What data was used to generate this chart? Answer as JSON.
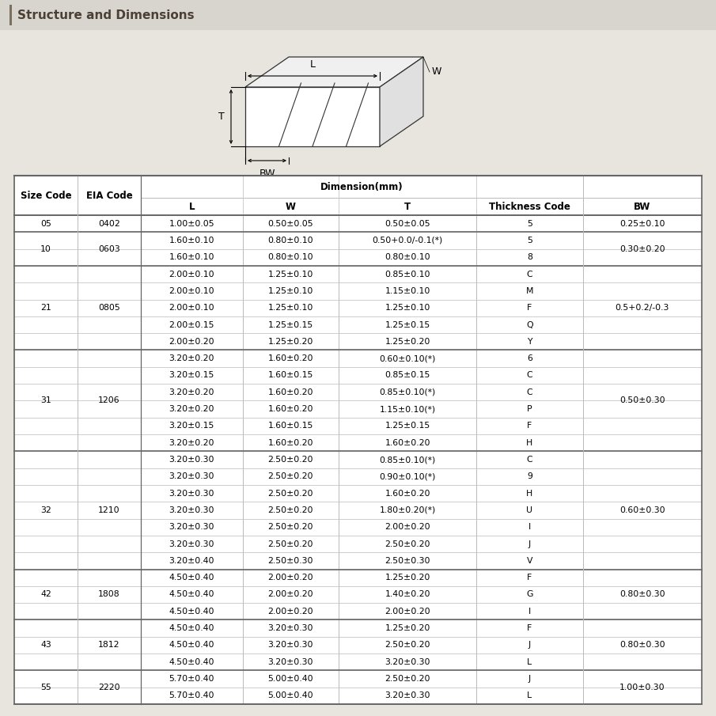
{
  "title": "Structure and Dimensions",
  "rows": [
    {
      "size": "05",
      "eia": "0402",
      "L": "1.00±0.05",
      "W": "0.50±0.05",
      "T": "0.50±0.05",
      "TC": "5",
      "BW": "0.25±0.10",
      "size_span": 1
    },
    {
      "size": "10",
      "eia": "0603",
      "L": "1.60±0.10",
      "W": "0.80±0.10",
      "T": "0.50+0.0/-0.1(*)",
      "TC": "5",
      "BW": "0.30±0.20",
      "size_span": 2
    },
    {
      "size": "",
      "eia": "",
      "L": "1.60±0.10",
      "W": "0.80±0.10",
      "T": "0.80±0.10",
      "TC": "8",
      "BW": ""
    },
    {
      "size": "21",
      "eia": "0805",
      "L": "2.00±0.10",
      "W": "1.25±0.10",
      "T": "0.85±0.10",
      "TC": "C",
      "BW": "0.5+0.2/-0.3",
      "size_span": 5
    },
    {
      "size": "",
      "eia": "",
      "L": "2.00±0.10",
      "W": "1.25±0.10",
      "T": "1.15±0.10",
      "TC": "M",
      "BW": ""
    },
    {
      "size": "",
      "eia": "",
      "L": "2.00±0.10",
      "W": "1.25±0.10",
      "T": "1.25±0.10",
      "TC": "F",
      "BW": ""
    },
    {
      "size": "",
      "eia": "",
      "L": "2.00±0.15",
      "W": "1.25±0.15",
      "T": "1.25±0.15",
      "TC": "Q",
      "BW": ""
    },
    {
      "size": "",
      "eia": "",
      "L": "2.00±0.20",
      "W": "1.25±0.20",
      "T": "1.25±0.20",
      "TC": "Y",
      "BW": ""
    },
    {
      "size": "31",
      "eia": "1206",
      "L": "3.20±0.20",
      "W": "1.60±0.20",
      "T": "0.60±0.10(*)",
      "TC": "6",
      "BW": "0.50±0.30",
      "size_span": 6
    },
    {
      "size": "",
      "eia": "",
      "L": "3.20±0.15",
      "W": "1.60±0.15",
      "T": "0.85±0.15",
      "TC": "C",
      "BW": ""
    },
    {
      "size": "",
      "eia": "",
      "L": "3.20±0.20",
      "W": "1.60±0.20",
      "T": "0.85±0.10(*)",
      "TC": "C",
      "BW": ""
    },
    {
      "size": "",
      "eia": "",
      "L": "3.20±0.20",
      "W": "1.60±0.20",
      "T": "1.15±0.10(*)",
      "TC": "P",
      "BW": ""
    },
    {
      "size": "",
      "eia": "",
      "L": "3.20±0.15",
      "W": "1.60±0.15",
      "T": "1.25±0.15",
      "TC": "F",
      "BW": ""
    },
    {
      "size": "",
      "eia": "",
      "L": "3.20±0.20",
      "W": "1.60±0.20",
      "T": "1.60±0.20",
      "TC": "H",
      "BW": ""
    },
    {
      "size": "32",
      "eia": "1210",
      "L": "3.20±0.30",
      "W": "2.50±0.20",
      "T": "0.85±0.10(*)",
      "TC": "C",
      "BW": "0.60±0.30",
      "size_span": 7
    },
    {
      "size": "",
      "eia": "",
      "L": "3.20±0.30",
      "W": "2.50±0.20",
      "T": "0.90±0.10(*)",
      "TC": "9",
      "BW": ""
    },
    {
      "size": "",
      "eia": "",
      "L": "3.20±0.30",
      "W": "2.50±0.20",
      "T": "1.60±0.20",
      "TC": "H",
      "BW": ""
    },
    {
      "size": "",
      "eia": "",
      "L": "3.20±0.30",
      "W": "2.50±0.20",
      "T": "1.80±0.20(*)",
      "TC": "U",
      "BW": ""
    },
    {
      "size": "",
      "eia": "",
      "L": "3.20±0.30",
      "W": "2.50±0.20",
      "T": "2.00±0.20",
      "TC": "I",
      "BW": ""
    },
    {
      "size": "",
      "eia": "",
      "L": "3.20±0.30",
      "W": "2.50±0.20",
      "T": "2.50±0.20",
      "TC": "J",
      "BW": ""
    },
    {
      "size": "",
      "eia": "",
      "L": "3.20±0.40",
      "W": "2.50±0.30",
      "T": "2.50±0.30",
      "TC": "V",
      "BW": ""
    },
    {
      "size": "42",
      "eia": "1808",
      "L": "4.50±0.40",
      "W": "2.00±0.20",
      "T": "1.25±0.20",
      "TC": "F",
      "BW": "0.80±0.30",
      "size_span": 3
    },
    {
      "size": "",
      "eia": "",
      "L": "4.50±0.40",
      "W": "2.00±0.20",
      "T": "1.40±0.20",
      "TC": "G",
      "BW": ""
    },
    {
      "size": "",
      "eia": "",
      "L": "4.50±0.40",
      "W": "2.00±0.20",
      "T": "2.00±0.20",
      "TC": "I",
      "BW": ""
    },
    {
      "size": "43",
      "eia": "1812",
      "L": "4.50±0.40",
      "W": "3.20±0.30",
      "T": "1.25±0.20",
      "TC": "F",
      "BW": "0.80±0.30",
      "size_span": 3
    },
    {
      "size": "",
      "eia": "",
      "L": "4.50±0.40",
      "W": "3.20±0.30",
      "T": "2.50±0.20",
      "TC": "J",
      "BW": ""
    },
    {
      "size": "",
      "eia": "",
      "L": "4.50±0.40",
      "W": "3.20±0.30",
      "T": "3.20±0.30",
      "TC": "L",
      "BW": ""
    },
    {
      "size": "55",
      "eia": "2220",
      "L": "5.70±0.40",
      "W": "5.00±0.40",
      "T": "2.50±0.20",
      "TC": "J",
      "BW": "1.00±0.30",
      "size_span": 2
    },
    {
      "size": "",
      "eia": "",
      "L": "5.70±0.40",
      "W": "5.00±0.40",
      "T": "3.20±0.30",
      "TC": "L",
      "BW": ""
    }
  ],
  "bg_color": "#e8e4de",
  "title_bg": "#d8d4ce",
  "accent_color": "#7a7060",
  "title_color": "#4a4035",
  "line_color": "#bbbbbb",
  "thick_line_color": "#666666",
  "font_size": 7.8,
  "header_font_size": 8.5,
  "diagram_line_color": "#333333"
}
